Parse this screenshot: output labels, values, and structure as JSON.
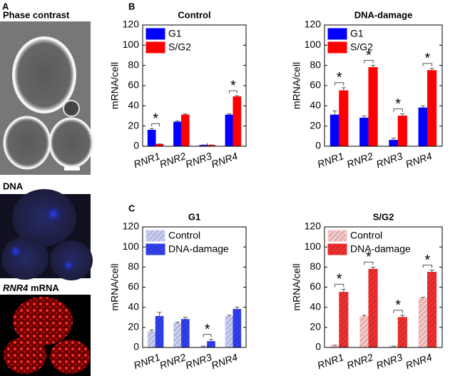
{
  "panel_labels": [
    "A",
    "B",
    "C"
  ],
  "images": [
    {
      "title": "Phase contrast"
    },
    {
      "title": "DNA"
    },
    {
      "gene": "RNR4",
      "title": "mRNA"
    }
  ],
  "chart_data": [
    {
      "type": "bar",
      "title": "Control",
      "ylabel": "mRNA/cell",
      "categories": [
        "RNR1",
        "RNR2",
        "RNR3",
        "RNR4"
      ],
      "series": [
        {
          "name": "G1",
          "color": "#0000ff",
          "values": [
            16,
            24,
            1,
            31
          ],
          "errors": [
            1.5,
            1,
            0.3,
            1
          ]
        },
        {
          "name": "S/G2",
          "color": "#ff0000",
          "values": [
            2,
            31,
            1,
            49
          ],
          "errors": [
            0.3,
            1,
            0.3,
            1
          ]
        }
      ],
      "significance": [
        "*",
        null,
        null,
        "*"
      ],
      "ylim": [
        0,
        120
      ],
      "yticks": [
        0,
        20,
        40,
        60,
        80,
        100,
        120
      ],
      "legend": "upper left",
      "hatch": false
    },
    {
      "type": "bar",
      "title": "DNA-damage",
      "ylabel": "mRNA/cell",
      "categories": [
        "RNR1",
        "RNR2",
        "RNR3",
        "RNR4"
      ],
      "series": [
        {
          "name": "G1",
          "color": "#0000ff",
          "values": [
            31,
            28,
            6,
            38
          ],
          "errors": [
            4,
            2,
            2,
            2
          ]
        },
        {
          "name": "S/G2",
          "color": "#ff0000",
          "values": [
            55,
            78,
            30,
            75
          ],
          "errors": [
            3,
            2,
            2,
            2
          ]
        }
      ],
      "significance": [
        "*",
        "*",
        "*",
        "*"
      ],
      "ylim": [
        0,
        120
      ],
      "yticks": [
        0,
        20,
        40,
        60,
        80,
        100,
        120
      ],
      "legend": "upper left",
      "hatch": false
    },
    {
      "type": "bar",
      "title": "G1",
      "ylabel": "mRNA/cell",
      "categories": [
        "RNR1",
        "RNR2",
        "RNR3",
        "RNR4"
      ],
      "series": [
        {
          "name": "Control",
          "color": "#c9cef2",
          "values": [
            16,
            24,
            1,
            31
          ],
          "errors": [
            1.5,
            1,
            0.3,
            1
          ]
        },
        {
          "name": "DNA-damage",
          "color": "#3040f0",
          "values": [
            31,
            28,
            6,
            38
          ],
          "errors": [
            4,
            2,
            2,
            2
          ]
        }
      ],
      "significance": [
        null,
        null,
        "*",
        null
      ],
      "ylim": [
        0,
        120
      ],
      "yticks": [
        0,
        20,
        40,
        60,
        80,
        100,
        120
      ],
      "legend": "upper left",
      "hatch": true
    },
    {
      "type": "bar",
      "title": "S/G2",
      "ylabel": "mRNA/cell",
      "categories": [
        "RNR1",
        "RNR2",
        "RNR3",
        "RNR4"
      ],
      "series": [
        {
          "name": "Control",
          "color": "#f7c6c6",
          "values": [
            2,
            31,
            1,
            49
          ],
          "errors": [
            0.3,
            1,
            0.3,
            1
          ]
        },
        {
          "name": "DNA-damage",
          "color": "#f03030",
          "values": [
            55,
            78,
            30,
            75
          ],
          "errors": [
            3,
            2,
            2,
            2
          ]
        }
      ],
      "significance": [
        "*",
        "*",
        "*",
        "*"
      ],
      "ylim": [
        0,
        120
      ],
      "yticks": [
        0,
        20,
        40,
        60,
        80,
        100,
        120
      ],
      "legend": "upper left",
      "hatch": true
    }
  ]
}
